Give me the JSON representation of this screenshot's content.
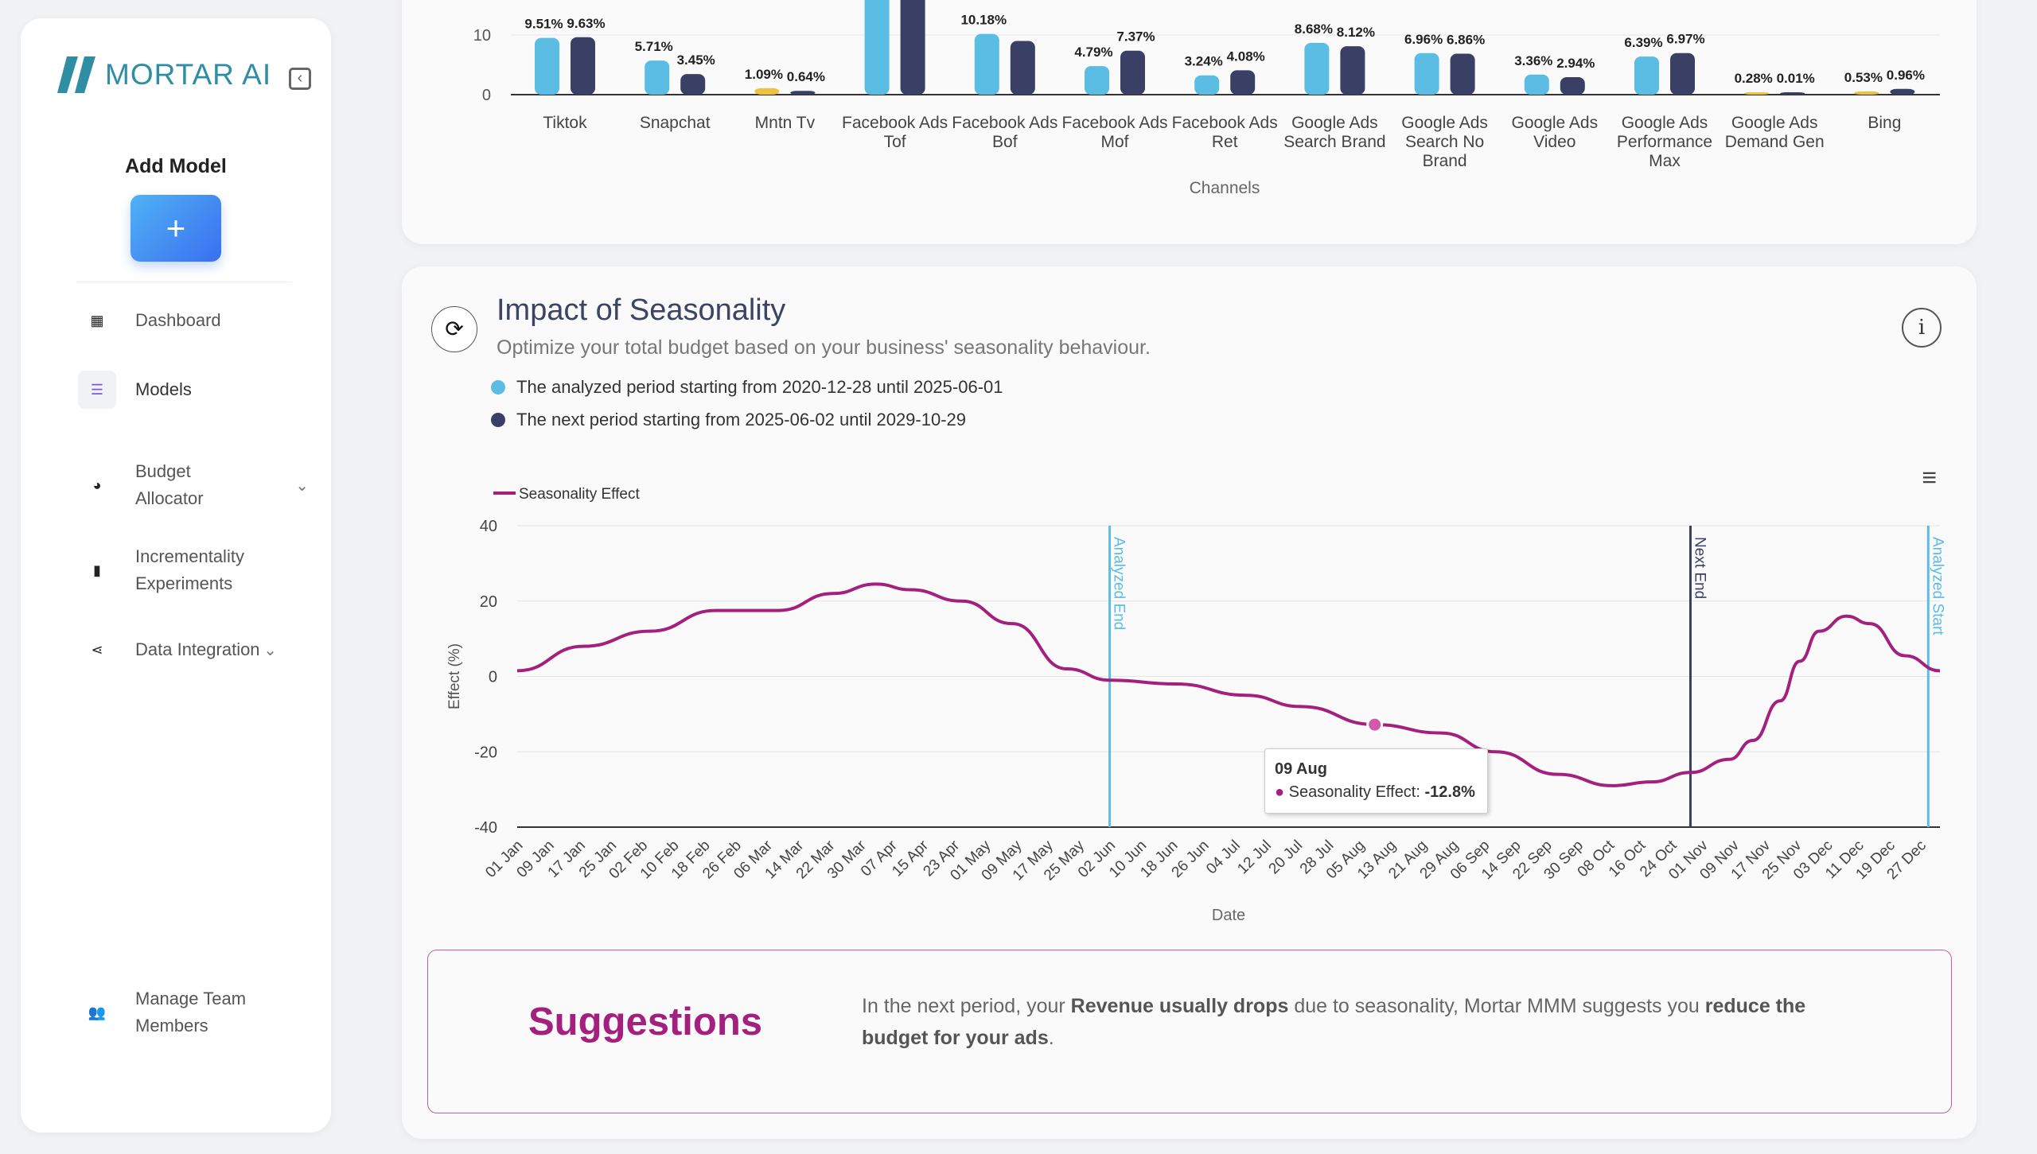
{
  "sidebar": {
    "brand": "MORTAR AI",
    "add_model_label": "Add Model",
    "add_button": "+",
    "items": [
      {
        "label": "Dashboard",
        "icon": "grid-icon"
      },
      {
        "label": "Models",
        "icon": "list-icon",
        "active": true
      },
      {
        "label": "Budget Allocator",
        "icon": "pie-chart-icon",
        "has_chevron": true
      },
      {
        "label": "Incrementality Experiments",
        "icon": "bar-chart-icon"
      },
      {
        "label": "Data Integration",
        "icon": "share-icon",
        "has_chevron": true
      },
      {
        "label": "Manage Team Members",
        "icon": "team-icon"
      }
    ]
  },
  "seasonality": {
    "title": "Impact of Seasonality",
    "subtitle": "Optimize your total budget based on your business' seasonality behaviour.",
    "legend": [
      {
        "text": "The analyzed period starting from 2020-12-28 until 2025-06-01",
        "color": "#5bbde4"
      },
      {
        "text": "The next period starting from 2025-06-02 until 2029-10-29",
        "color": "#3a3f66"
      }
    ],
    "tooltip": {
      "date": "09 Aug",
      "series": "Seasonality Effect:",
      "value": "-12.8%"
    },
    "suggestions": {
      "title": "Suggestions",
      "t1": "In the next period, your ",
      "b1": "Revenue usually drops",
      "t2": " due to seasonality, Mortar MMM suggests you ",
      "b2": "reduce the budget for your ads",
      "t3": "."
    }
  },
  "chart_data": [
    {
      "type": "bar",
      "xlabel": "Channels",
      "yticks": [
        0,
        10
      ],
      "categories": [
        "Tiktok",
        "Snapchat",
        "Mntn Tv",
        "Facebook Ads Tof",
        "Facebook Ads Bof",
        "Facebook Ads Mof",
        "Facebook Ads Ret",
        "Google Ads Search Brand",
        "Google Ads Search No Brand",
        "Google Ads Video",
        "Google Ads Performance Max",
        "Google Ads Demand Gen",
        "Bing"
      ],
      "series": [
        {
          "name": "Analyzed period",
          "values": [
            9.51,
            5.71,
            1.09,
            17,
            10.18,
            4.79,
            3.24,
            8.68,
            6.96,
            3.36,
            6.39,
            0.28,
            0.53
          ],
          "labels": [
            "9.51%",
            "5.71%",
            "1.09%",
            "",
            "10.18%",
            "4.79%",
            "3.24%",
            "8.68%",
            "6.96%",
            "3.36%",
            "6.39%",
            "0.28%",
            "0.53%"
          ]
        },
        {
          "name": "Next period",
          "values": [
            9.63,
            3.45,
            0.64,
            17,
            9.0,
            7.37,
            4.08,
            8.12,
            6.86,
            2.94,
            6.97,
            0.01,
            0.96
          ],
          "labels": [
            "9.63%",
            "3.45%",
            "0.64%",
            "",
            "",
            "7.37%",
            "4.08%",
            "8.12%",
            "6.86%",
            "2.94%",
            "6.97%",
            "0.01%",
            "0.96%"
          ]
        }
      ],
      "colors": {
        "analyzed": "#5bbde4",
        "next": "#3a3f66",
        "low": "#f0c040"
      }
    },
    {
      "type": "line",
      "title": "Seasonality Effect",
      "xlabel": "Date",
      "ylabel": "Effect (%)",
      "ylim": [
        -40,
        40
      ],
      "yticks": [
        40,
        20,
        0,
        -20,
        -40
      ],
      "color": "#a4207f",
      "xticks": [
        "01 Jan",
        "09 Jan",
        "17 Jan",
        "25 Jan",
        "02 Feb",
        "10 Feb",
        "18 Feb",
        "26 Feb",
        "06 Mar",
        "14 Mar",
        "22 Mar",
        "30 Mar",
        "07 Apr",
        "15 Apr",
        "23 Apr",
        "01 May",
        "09 May",
        "17 May",
        "25 May",
        "02 Jun",
        "10 Jun",
        "18 Jun",
        "26 Jun",
        "04 Jul",
        "12 Jul",
        "20 Jul",
        "28 Jul",
        "05 Aug",
        "13 Aug",
        "21 Aug",
        "29 Aug",
        "06 Sep",
        "14 Sep",
        "22 Sep",
        "30 Sep",
        "08 Oct",
        "16 Oct",
        "24 Oct",
        "01 Nov",
        "09 Nov",
        "17 Nov",
        "25 Nov",
        "03 Dec",
        "11 Dec",
        "19 Dec",
        "27 Dec"
      ],
      "points_day_of_year": [
        0,
        17,
        34,
        51,
        67,
        81,
        92,
        101,
        114,
        127,
        141,
        152,
        169,
        187,
        201,
        220,
        237,
        251,
        267,
        281,
        291,
        301,
        311,
        317,
        324,
        329,
        334,
        341,
        347,
        356,
        365
      ],
      "values": [
        1.5,
        8,
        12,
        17.5,
        17.5,
        22,
        24.5,
        23,
        20,
        14,
        2,
        -1,
        -2,
        -5,
        -8,
        -12.8,
        -15,
        -20,
        -26,
        -29,
        -28,
        -25.5,
        -22,
        -17,
        -6.5,
        4,
        12,
        16,
        14,
        5.5,
        1.5
      ],
      "highlight_day": 220,
      "plot_lines": [
        {
          "label": "Analyzed End",
          "day": 152,
          "color": "#5bbde4"
        },
        {
          "label": "Next End",
          "day": 301,
          "color": "#3a3f66"
        },
        {
          "label": "Analyzed Start",
          "day": 362,
          "color": "#5bbde4"
        }
      ]
    }
  ]
}
